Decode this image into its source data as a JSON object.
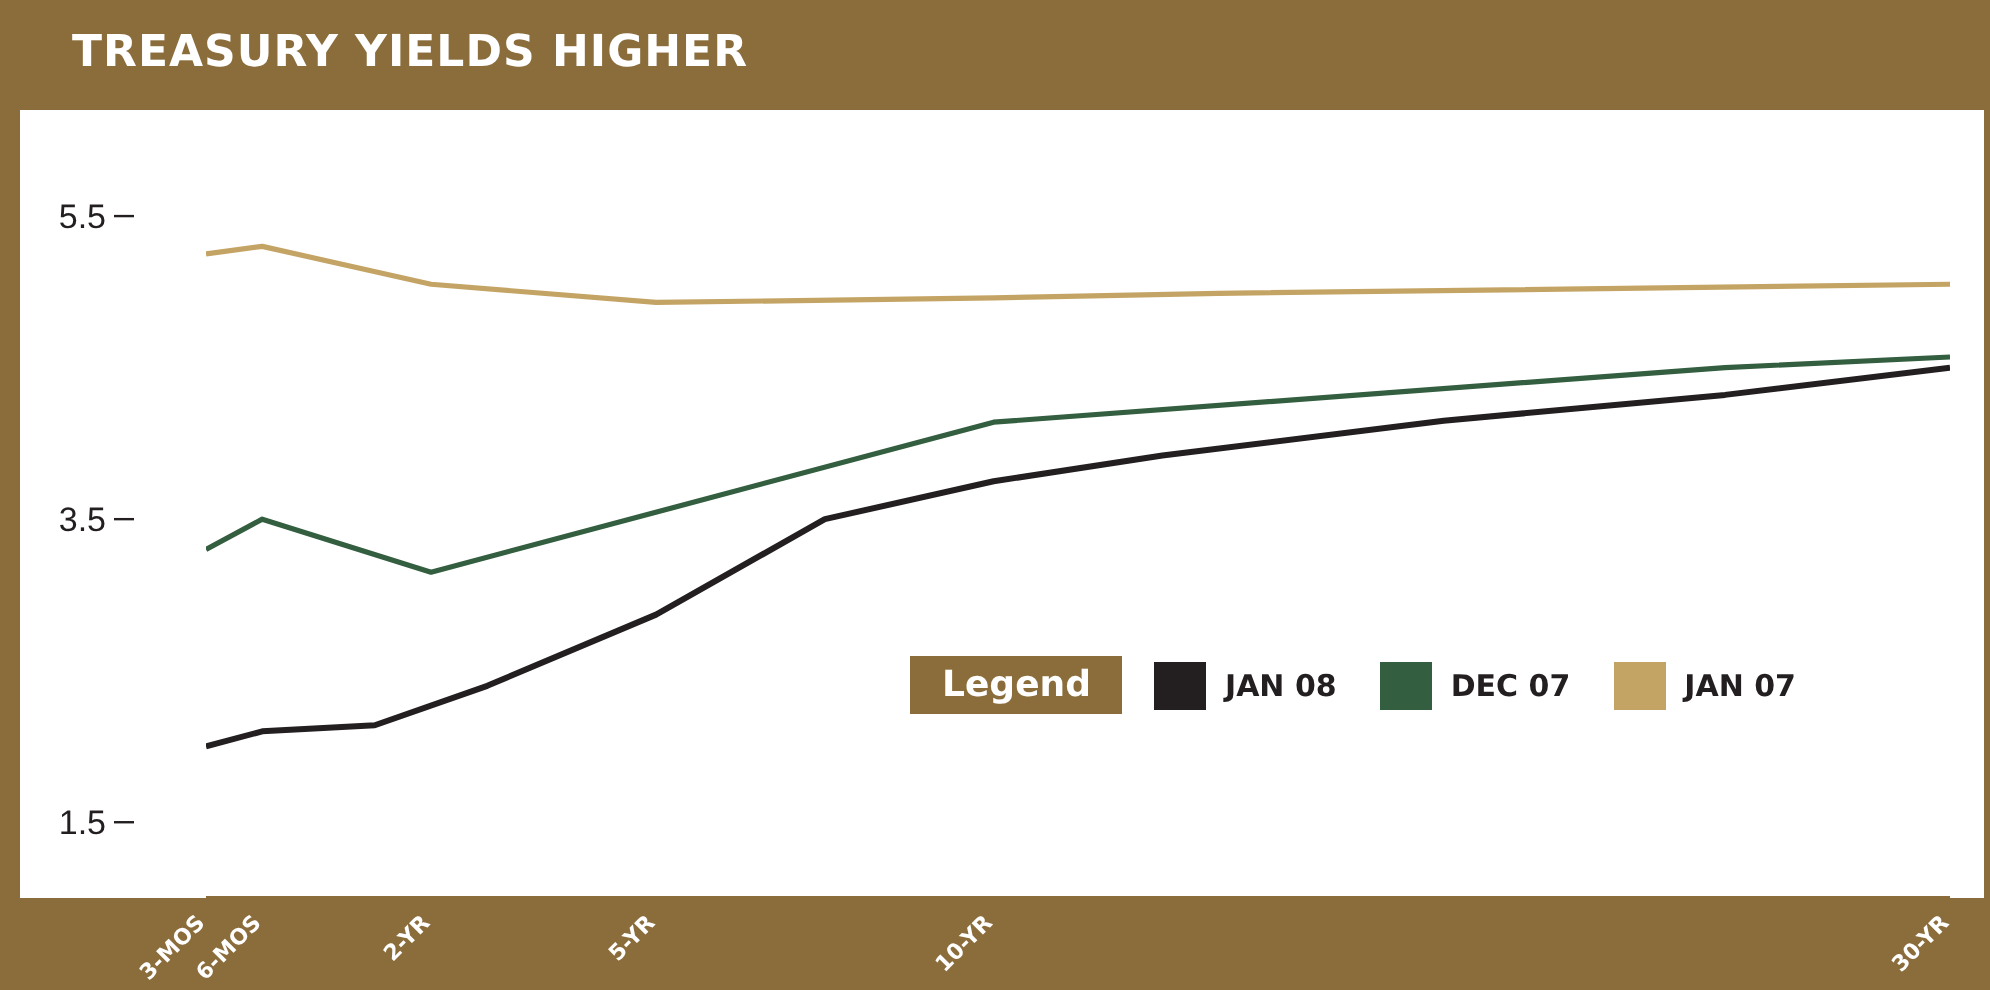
{
  "chart_data": {
    "type": "line",
    "title": "TREASURY YIELDS HIGHER",
    "legend_title": "Legend",
    "categories": [
      "3-MOS",
      "6-MOS",
      null,
      null,
      "2-YR",
      null,
      null,
      null,
      "5-YR",
      null,
      null,
      null,
      null,
      null,
      "10-YR",
      null,
      null,
      null,
      null,
      null,
      null,
      null,
      null,
      null,
      null,
      null,
      null,
      null,
      null,
      null,
      null,
      "30-YR"
    ],
    "series": [
      {
        "name": "JAN 08",
        "color": "#231f20",
        "values": [
          2.0,
          2.1,
          null,
          2.14,
          null,
          2.4,
          null,
          null,
          2.87,
          null,
          null,
          3.5,
          null,
          null,
          3.75,
          null,
          null,
          3.92,
          null,
          null,
          null,
          null,
          4.15,
          null,
          null,
          null,
          null,
          4.32,
          null,
          null,
          null,
          4.5
        ]
      },
      {
        "name": "DEC 07",
        "color": "#335e3f",
        "values": [
          3.3,
          3.5,
          null,
          null,
          3.15,
          null,
          null,
          null,
          null,
          null,
          null,
          null,
          null,
          null,
          4.14,
          null,
          null,
          null,
          null,
          null,
          null,
          null,
          null,
          null,
          null,
          null,
          null,
          4.5,
          null,
          null,
          null,
          4.57
        ]
      },
      {
        "name": "JAN 07",
        "color": "#c4a464",
        "values": [
          5.25,
          5.3,
          null,
          null,
          5.05,
          null,
          null,
          null,
          4.93,
          null,
          null,
          null,
          null,
          null,
          4.96,
          null,
          null,
          null,
          4.99,
          null,
          null,
          null,
          null,
          null,
          null,
          null,
          null,
          null,
          null,
          null,
          null,
          5.05
        ]
      }
    ],
    "ylim": [
      1,
      6.2
    ],
    "yticks": [
      1.5,
      3.5,
      5.5
    ],
    "grid": false,
    "legend": "bottom right",
    "marker": "none",
    "line_style": "solid"
  }
}
